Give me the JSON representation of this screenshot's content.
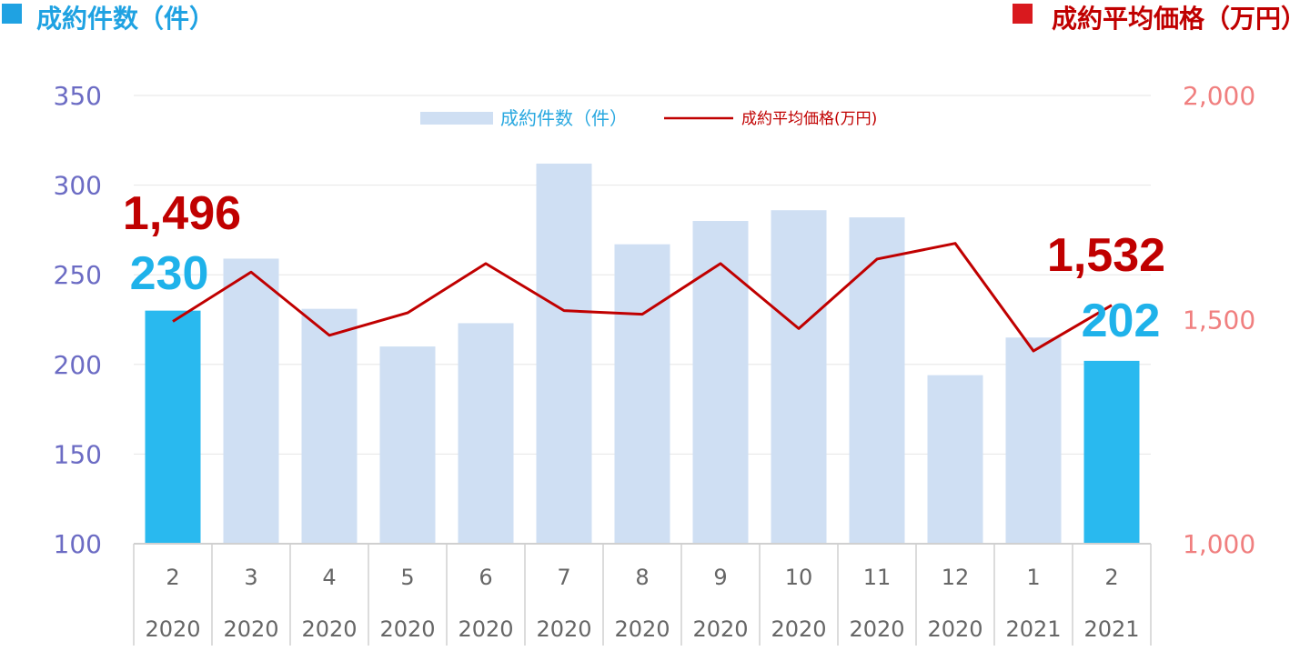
{
  "header": {
    "left_title": "成約件数（件）",
    "right_title": "成約平均価格（万円）"
  },
  "legend": {
    "bar_label": "成約件数（件）",
    "line_label": "成約平均価格(万円)"
  },
  "colors": {
    "bar": "#cfdff3",
    "bar_highlight": "#29b9ef",
    "line": "#c00000",
    "left_header_square": "#1fa2e2",
    "right_header_square": "#d9191e",
    "left_axis": "#6c6cc4",
    "right_axis": "#f07f7f",
    "label_blue": "#1fb2ea",
    "label_red": "#c00000"
  },
  "chart_data": {
    "type": "bar",
    "categories": [
      {
        "month": "2",
        "year": "2020"
      },
      {
        "month": "3",
        "year": "2020"
      },
      {
        "month": "4",
        "year": "2020"
      },
      {
        "month": "5",
        "year": "2020"
      },
      {
        "month": "6",
        "year": "2020"
      },
      {
        "month": "7",
        "year": "2020"
      },
      {
        "month": "8",
        "year": "2020"
      },
      {
        "month": "9",
        "year": "2020"
      },
      {
        "month": "10",
        "year": "2020"
      },
      {
        "month": "11",
        "year": "2020"
      },
      {
        "month": "12",
        "year": "2020"
      },
      {
        "month": "1",
        "year": "2021"
      },
      {
        "month": "2",
        "year": "2021"
      }
    ],
    "series": [
      {
        "name": "成約件数（件）",
        "kind": "bar",
        "axis": "left",
        "values": [
          230,
          259,
          231,
          210,
          223,
          312,
          267,
          280,
          286,
          282,
          194,
          215,
          202
        ],
        "highlight_indices": [
          0,
          12
        ]
      },
      {
        "name": "成約平均価格(万円)",
        "kind": "line",
        "axis": "right",
        "values": [
          1496,
          1606,
          1465,
          1515,
          1625,
          1520,
          1512,
          1625,
          1480,
          1635,
          1670,
          1430,
          1532
        ]
      }
    ],
    "y_left": {
      "min": 100,
      "max": 350,
      "ticks": [
        "100",
        "150",
        "200",
        "250",
        "300",
        "350"
      ],
      "tick_values": [
        100,
        150,
        200,
        250,
        300,
        350
      ]
    },
    "y_right": {
      "min": 1000,
      "max": 2000,
      "ticks": [
        "1,000",
        "1,500",
        "2,000"
      ],
      "tick_values": [
        1000,
        1500,
        2000
      ]
    },
    "annotations": {
      "first_count": "230",
      "first_price": "1,496",
      "last_count": "202",
      "last_price": "1,532"
    },
    "grid": true,
    "legend_position": "top"
  }
}
